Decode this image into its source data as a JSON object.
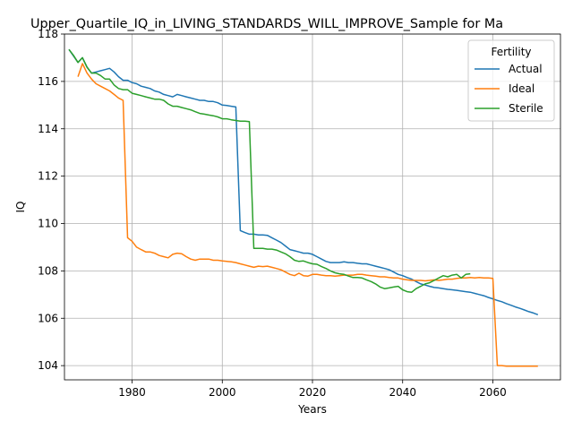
{
  "chart_data": {
    "type": "line",
    "title": "Upper_Quartile_IQ_in_LIVING_STANDARDS_WILL_IMPROVE_Sample for Ma",
    "xlabel": "Years",
    "ylabel": "IQ",
    "xlim": [
      1965,
      2075
    ],
    "ylim": [
      103.4,
      118
    ],
    "xticks": [
      1980,
      2000,
      2020,
      2040,
      2060
    ],
    "yticks": [
      104,
      106,
      108,
      110,
      112,
      114,
      116,
      118
    ],
    "grid": true,
    "legend": {
      "title": "Fertility",
      "placement": "top-right"
    },
    "series": [
      {
        "name": "Actual",
        "color": "#1f77b4",
        "x": [
          1966,
          1968,
          1969,
          1970,
          1971,
          1972,
          1973,
          1974,
          1975,
          1976,
          1977,
          1978,
          1979,
          1980,
          1981,
          1982,
          1983,
          1984,
          1985,
          1986,
          1987,
          1988,
          1989,
          1990,
          1991,
          1992,
          1993,
          1994,
          1995,
          1996,
          1997,
          1998,
          1999,
          2000,
          2001,
          2002,
          2003,
          2004,
          2005,
          2006,
          2007,
          2008,
          2009,
          2010,
          2011,
          2012,
          2013,
          2014,
          2015,
          2016,
          2017,
          2018,
          2019,
          2020,
          2021,
          2022,
          2023,
          2024,
          2025,
          2026,
          2027,
          2028,
          2029,
          2030,
          2031,
          2032,
          2033,
          2034,
          2035,
          2036,
          2037,
          2038,
          2039,
          2040,
          2041,
          2042,
          2043,
          2044,
          2045,
          2046,
          2047,
          2048,
          2049,
          2050,
          2051,
          2052,
          2053,
          2054,
          2055,
          2056,
          2057,
          2058,
          2059,
          2060,
          2061,
          2062,
          2063,
          2064,
          2065,
          2066,
          2067,
          2068,
          2069,
          2070
        ],
        "y": [
          117.35,
          116.8,
          117.0,
          116.6,
          116.35,
          116.4,
          116.45,
          116.5,
          116.55,
          116.4,
          116.2,
          116.05,
          116.05,
          115.95,
          115.9,
          115.8,
          115.75,
          115.7,
          115.6,
          115.55,
          115.45,
          115.4,
          115.35,
          115.45,
          115.4,
          115.35,
          115.3,
          115.25,
          115.2,
          115.2,
          115.15,
          115.15,
          115.1,
          115.0,
          114.98,
          114.95,
          114.92,
          109.7,
          109.62,
          109.55,
          109.55,
          109.52,
          109.52,
          109.5,
          109.4,
          109.3,
          109.2,
          109.05,
          108.9,
          108.85,
          108.8,
          108.75,
          108.75,
          108.7,
          108.6,
          108.5,
          108.4,
          108.35,
          108.35,
          108.35,
          108.38,
          108.35,
          108.35,
          108.32,
          108.3,
          108.3,
          108.25,
          108.2,
          108.15,
          108.1,
          108.05,
          107.95,
          107.85,
          107.8,
          107.72,
          107.65,
          107.55,
          107.45,
          107.4,
          107.35,
          107.3,
          107.28,
          107.25,
          107.22,
          107.2,
          107.18,
          107.15,
          107.12,
          107.1,
          107.05,
          107.0,
          106.95,
          106.88,
          106.82,
          106.75,
          106.7,
          106.62,
          106.55,
          106.48,
          106.42,
          106.35,
          106.28,
          106.22,
          106.15
        ]
      },
      {
        "name": "Ideal",
        "color": "#ff7f0e",
        "x": [
          1968,
          1969,
          1970,
          1971,
          1972,
          1973,
          1974,
          1975,
          1976,
          1977,
          1978,
          1979,
          1980,
          1981,
          1982,
          1983,
          1984,
          1985,
          1986,
          1987,
          1988,
          1989,
          1990,
          1991,
          1992,
          1993,
          1994,
          1995,
          1996,
          1997,
          1998,
          1999,
          2000,
          2001,
          2002,
          2003,
          2004,
          2005,
          2006,
          2007,
          2008,
          2009,
          2010,
          2011,
          2012,
          2013,
          2014,
          2015,
          2016,
          2017,
          2018,
          2019,
          2020,
          2021,
          2022,
          2023,
          2024,
          2025,
          2026,
          2027,
          2028,
          2029,
          2030,
          2031,
          2032,
          2033,
          2034,
          2035,
          2036,
          2037,
          2038,
          2039,
          2040,
          2041,
          2042,
          2043,
          2044,
          2045,
          2046,
          2047,
          2048,
          2049,
          2050,
          2051,
          2052,
          2053,
          2054,
          2055,
          2056,
          2057,
          2058,
          2059,
          2060,
          2061,
          2062,
          2063,
          2064,
          2065,
          2066,
          2067,
          2068,
          2069,
          2070
        ],
        "y": [
          116.2,
          116.75,
          116.35,
          116.1,
          115.9,
          115.8,
          115.7,
          115.6,
          115.45,
          115.3,
          115.2,
          109.4,
          109.25,
          109.0,
          108.9,
          108.8,
          108.8,
          108.75,
          108.65,
          108.6,
          108.55,
          108.7,
          108.75,
          108.72,
          108.6,
          108.5,
          108.45,
          108.5,
          108.5,
          108.5,
          108.45,
          108.45,
          108.42,
          108.4,
          108.38,
          108.35,
          108.3,
          108.25,
          108.2,
          108.15,
          108.2,
          108.18,
          108.2,
          108.15,
          108.1,
          108.05,
          107.95,
          107.85,
          107.8,
          107.9,
          107.8,
          107.78,
          107.85,
          107.85,
          107.82,
          107.8,
          107.8,
          107.78,
          107.8,
          107.82,
          107.82,
          107.82,
          107.85,
          107.85,
          107.82,
          107.8,
          107.78,
          107.75,
          107.75,
          107.72,
          107.7,
          107.7,
          107.65,
          107.62,
          107.6,
          107.6,
          107.6,
          107.58,
          107.6,
          107.62,
          107.6,
          107.62,
          107.65,
          107.65,
          107.68,
          107.7,
          107.7,
          107.72,
          107.7,
          107.72,
          107.7,
          107.7,
          107.68,
          104.0,
          104.0,
          103.98,
          103.98,
          103.98,
          103.98,
          103.98,
          103.98,
          103.98,
          103.98
        ],
        "note": ""
      },
      {
        "name": "Sterile",
        "color": "#2ca02c",
        "x": [
          1966,
          1967,
          1968,
          1969,
          1970,
          1971,
          1972,
          1973,
          1974,
          1975,
          1976,
          1977,
          1978,
          1979,
          1980,
          1981,
          1982,
          1983,
          1984,
          1985,
          1986,
          1987,
          1988,
          1989,
          1990,
          1991,
          1992,
          1993,
          1994,
          1995,
          1996,
          1997,
          1998,
          1999,
          2000,
          2001,
          2002,
          2003,
          2004,
          2005,
          2006,
          2007,
          2008,
          2009,
          2010,
          2011,
          2012,
          2013,
          2014,
          2015,
          2016,
          2017,
          2018,
          2019,
          2020,
          2021,
          2022,
          2023,
          2024,
          2025,
          2026,
          2027,
          2028,
          2029,
          2030,
          2031,
          2032,
          2033,
          2034,
          2035,
          2036,
          2037,
          2038,
          2039,
          2040,
          2041,
          2042,
          2043,
          2044,
          2045,
          2046,
          2047,
          2048,
          2049,
          2050,
          2051,
          2052,
          2053,
          2054,
          2055
        ],
        "y": [
          117.35,
          117.1,
          116.8,
          117.0,
          116.6,
          116.35,
          116.35,
          116.25,
          116.1,
          116.1,
          115.85,
          115.7,
          115.65,
          115.65,
          115.5,
          115.45,
          115.4,
          115.35,
          115.3,
          115.25,
          115.25,
          115.2,
          115.05,
          114.95,
          114.95,
          114.9,
          114.85,
          114.8,
          114.72,
          114.65,
          114.62,
          114.58,
          114.55,
          114.5,
          114.42,
          114.42,
          114.38,
          114.35,
          114.32,
          114.32,
          114.3,
          108.95,
          108.95,
          108.95,
          108.92,
          108.92,
          108.88,
          108.8,
          108.72,
          108.6,
          108.45,
          108.4,
          108.42,
          108.35,
          108.3,
          108.28,
          108.18,
          108.1,
          108.0,
          107.92,
          107.88,
          107.85,
          107.78,
          107.72,
          107.72,
          107.7,
          107.62,
          107.55,
          107.45,
          107.32,
          107.25,
          107.28,
          107.32,
          107.35,
          107.2,
          107.12,
          107.1,
          107.25,
          107.35,
          107.45,
          107.5,
          107.6,
          107.7,
          107.8,
          107.75,
          107.82,
          107.85,
          107.7,
          107.85,
          107.88
        ]
      }
    ]
  }
}
